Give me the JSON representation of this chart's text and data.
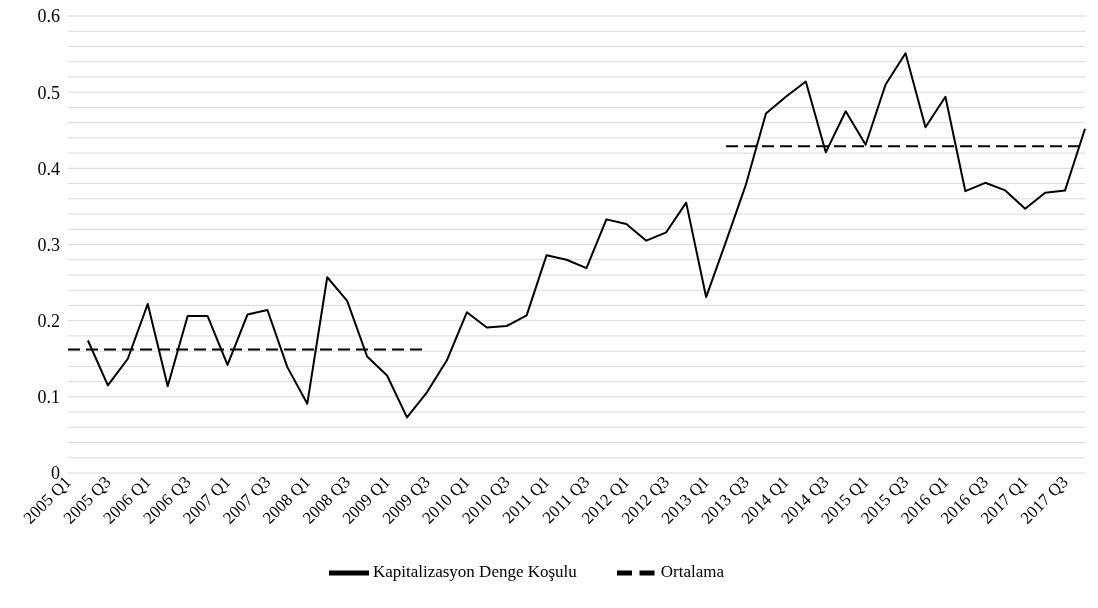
{
  "chart_data": {
    "type": "line",
    "categories": [
      "2005 Q1",
      null,
      "2005 Q3",
      null,
      "2006 Q1",
      null,
      "2006 Q3",
      null,
      "2007 Q1",
      null,
      "2007 Q3",
      null,
      "2008 Q1",
      null,
      "2008 Q3",
      null,
      "2009 Q1",
      null,
      "2009 Q3",
      null,
      "2010 Q1",
      null,
      "2010 Q3",
      null,
      "2011 Q1",
      null,
      "2011 Q3",
      null,
      "2012 Q1",
      null,
      "2012 Q3",
      null,
      "2013 Q1",
      null,
      "2013 Q3",
      null,
      "2014 Q1",
      null,
      "2014 Q3",
      null,
      "2015 Q1",
      null,
      "2015 Q3",
      null,
      "2016 Q1",
      null,
      "2016 Q3",
      null,
      "2017 Q1",
      null,
      "2017 Q3",
      null
    ],
    "series": [
      {
        "name": "Kapitalizasyon Denge Koşulu",
        "color": "#000000",
        "line_style": "solid",
        "values": [
          null,
          0.174,
          0.115,
          0.15,
          0.222,
          0.114,
          0.206,
          0.206,
          0.142,
          0.208,
          0.214,
          0.139,
          0.091,
          0.257,
          0.226,
          0.153,
          0.128,
          0.073,
          0.106,
          0.148,
          0.211,
          0.191,
          0.193,
          0.207,
          0.286,
          0.28,
          0.269,
          0.333,
          0.327,
          0.305,
          0.316,
          0.355,
          0.231,
          0.304,
          0.379,
          0.472,
          0.494,
          0.514,
          0.421,
          0.475,
          0.431,
          0.51,
          0.551,
          0.454,
          0.494,
          0.37,
          0.381,
          0.371,
          0.347,
          0.368,
          0.371,
          0.452
        ]
      },
      {
        "name": "Ortalama",
        "color": "#000000",
        "line_style": "dashed",
        "values": [
          0.162,
          0.162,
          0.162,
          0.162,
          0.162,
          0.162,
          0.162,
          0.162,
          0.162,
          0.162,
          0.162,
          0.162,
          0.162,
          0.162,
          0.162,
          0.162,
          0.162,
          0.162,
          0.162,
          null,
          null,
          null,
          null,
          null,
          null,
          null,
          null,
          null,
          null,
          null,
          null,
          null,
          null,
          0.429,
          0.429,
          0.429,
          0.429,
          0.429,
          0.429,
          0.429,
          0.429,
          0.429,
          0.429,
          0.429,
          0.429,
          0.429,
          0.429,
          0.429,
          0.429,
          0.429,
          0.429,
          0.429
        ]
      }
    ],
    "ylim": [
      0,
      0.6
    ],
    "yticks": [
      0,
      {
        "value": 0.02,
        "label": null
      },
      {
        "value": 0.04,
        "label": null
      },
      {
        "value": 0.06,
        "label": null
      },
      {
        "value": 0.08,
        "label": null
      },
      0.1,
      {
        "value": 0.12,
        "label": null
      },
      {
        "value": 0.14,
        "label": null
      },
      {
        "value": 0.16,
        "label": null
      },
      {
        "value": 0.18,
        "label": null
      },
      0.2,
      {
        "value": 0.22,
        "label": null
      },
      {
        "value": 0.24,
        "label": null
      },
      {
        "value": 0.26,
        "label": null
      },
      {
        "value": 0.28,
        "label": null
      },
      0.3,
      {
        "value": 0.32,
        "label": null
      },
      {
        "value": 0.34,
        "label": null
      },
      {
        "value": 0.36,
        "label": null
      },
      {
        "value": 0.38,
        "label": null
      },
      0.4,
      {
        "value": 0.42,
        "label": null
      },
      {
        "value": 0.44,
        "label": null
      },
      {
        "value": 0.46,
        "label": null
      },
      {
        "value": 0.48,
        "label": null
      },
      0.5,
      {
        "value": 0.52,
        "label": null
      },
      {
        "value": 0.54,
        "label": null
      },
      {
        "value": 0.56,
        "label": null
      },
      {
        "value": 0.58,
        "label": null
      },
      0.6
    ],
    "grid": "y",
    "legend": "bottom",
    "marker": "none"
  }
}
